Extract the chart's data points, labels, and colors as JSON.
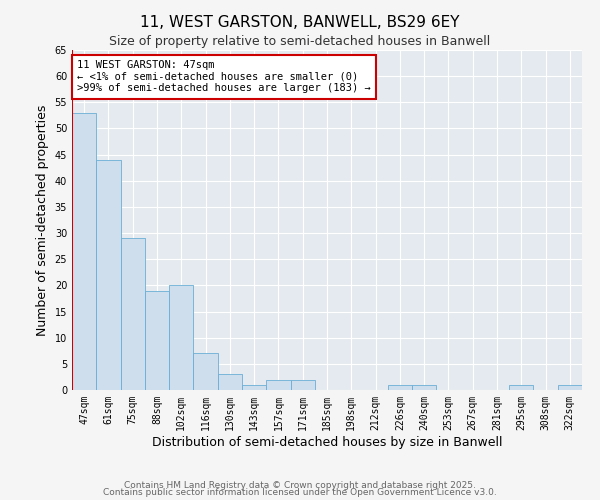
{
  "title": "11, WEST GARSTON, BANWELL, BS29 6EY",
  "subtitle": "Size of property relative to semi-detached houses in Banwell",
  "xlabel": "Distribution of semi-detached houses by size in Banwell",
  "ylabel": "Number of semi-detached properties",
  "categories": [
    "47sqm",
    "61sqm",
    "75sqm",
    "88sqm",
    "102sqm",
    "116sqm",
    "130sqm",
    "143sqm",
    "157sqm",
    "171sqm",
    "185sqm",
    "198sqm",
    "212sqm",
    "226sqm",
    "240sqm",
    "253sqm",
    "267sqm",
    "281sqm",
    "295sqm",
    "308sqm",
    "322sqm"
  ],
  "values": [
    53,
    44,
    29,
    19,
    20,
    7,
    3,
    1,
    2,
    2,
    0,
    0,
    0,
    1,
    1,
    0,
    0,
    0,
    1,
    0,
    1
  ],
  "bar_color": "#cfdeed",
  "bar_edge_color": "#6aaed6",
  "annotation_box_color": "#ffffff",
  "annotation_box_edge": "#cc0000",
  "annotation_title": "11 WEST GARSTON: 47sqm",
  "annotation_line1": "← <1% of semi-detached houses are smaller (0)",
  "annotation_line2": ">99% of semi-detached houses are larger (183) →",
  "ylim": [
    0,
    65
  ],
  "yticks": [
    0,
    5,
    10,
    15,
    20,
    25,
    30,
    35,
    40,
    45,
    50,
    55,
    60,
    65
  ],
  "grid_color": "#ffffff",
  "bg_color": "#e5eaf0",
  "plot_bg_color": "#ffffff",
  "fig_bg_color": "#f5f5f5",
  "footer1": "Contains HM Land Registry data © Crown copyright and database right 2025.",
  "footer2": "Contains public sector information licensed under the Open Government Licence v3.0.",
  "title_fontsize": 11,
  "subtitle_fontsize": 9,
  "axis_label_fontsize": 9,
  "tick_fontsize": 7,
  "annotation_fontsize": 7.5,
  "footer_fontsize": 6.5
}
